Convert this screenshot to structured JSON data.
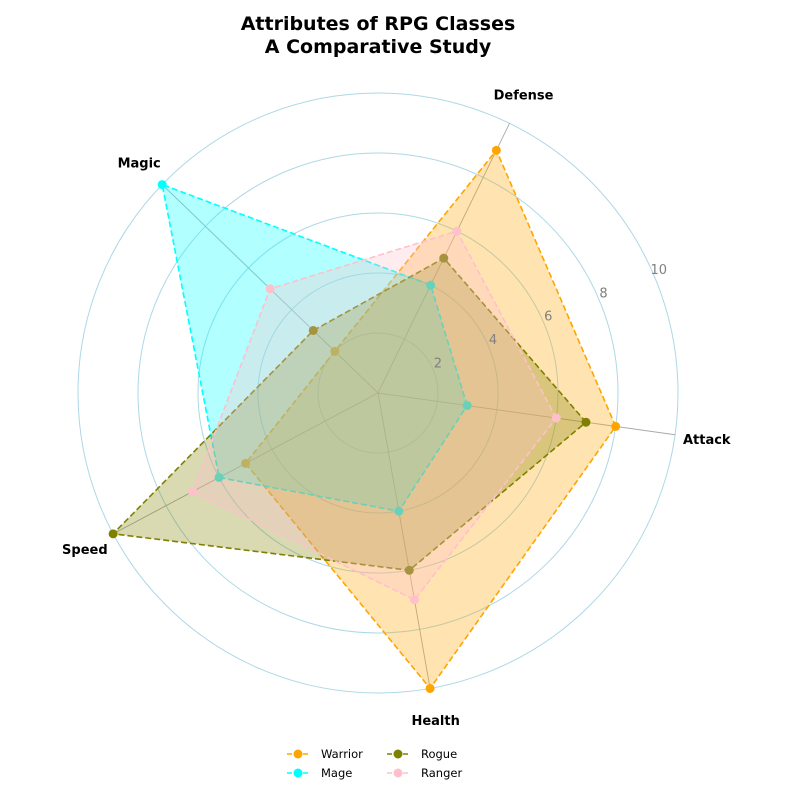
{
  "chart_data": {
    "type": "radar",
    "title": [
      "Attributes of RPG Classes",
      "A Comparative Study"
    ],
    "axes": [
      "Attack",
      "Defense",
      "Magic",
      "Speed",
      "Health"
    ],
    "rlim": [
      0,
      10
    ],
    "r_ticks": [
      "2",
      "4",
      "6",
      "8",
      "10"
    ],
    "r_tick_values": [
      2,
      4,
      6,
      8,
      10
    ],
    "grid": true,
    "legend_position": "bottom-center",
    "series": [
      {
        "name": "Warrior",
        "color": "#FFA500",
        "values": [
          8,
          9,
          2,
          5,
          10
        ]
      },
      {
        "name": "Mage",
        "color": "#00FFFF",
        "values": [
          3,
          4,
          10,
          6,
          4
        ]
      },
      {
        "name": "Rogue",
        "color": "#808000",
        "values": [
          7,
          5,
          3,
          10,
          6
        ]
      },
      {
        "name": "Ranger",
        "color": "#FFC0CB",
        "values": [
          6,
          6,
          5,
          7,
          7
        ]
      }
    ],
    "grid_color": "#ADD8E6",
    "spoke_color": "#A9A9A9"
  }
}
